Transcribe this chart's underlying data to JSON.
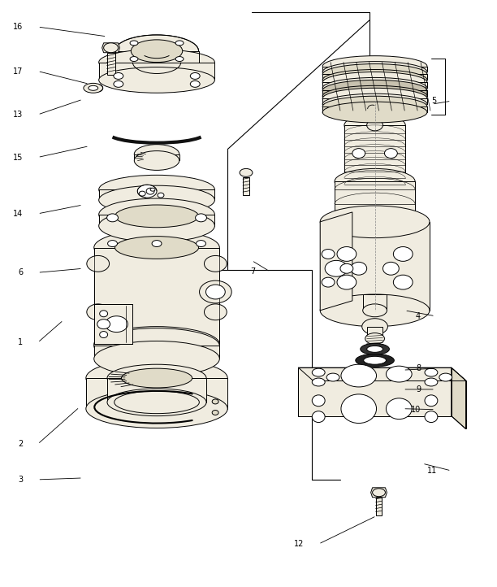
{
  "background_color": "#ffffff",
  "lc": "#000000",
  "lw": 0.7,
  "fill_light": "#f0ece0",
  "fill_mid": "#e0dbc8",
  "fill_dark": "#c8c2b0",
  "fill_white": "#ffffff",
  "fill_black": "#111111",
  "fig_width": 6.12,
  "fig_height": 7.22,
  "dpi": 100,
  "leaders": {
    "16": [
      0.042,
      0.96,
      0.13,
      0.95
    ],
    "17": [
      0.042,
      0.9,
      0.09,
      0.893
    ],
    "13": [
      0.042,
      0.8,
      0.095,
      0.82
    ],
    "15": [
      0.042,
      0.73,
      0.11,
      0.74
    ],
    "14": [
      0.042,
      0.635,
      0.095,
      0.644
    ],
    "6": [
      0.042,
      0.535,
      0.095,
      0.525
    ],
    "1": [
      0.042,
      0.43,
      0.073,
      0.435
    ],
    "2": [
      0.042,
      0.24,
      0.082,
      0.248
    ],
    "3": [
      0.042,
      0.178,
      0.097,
      0.178
    ],
    "7": [
      0.43,
      0.54,
      0.37,
      0.535
    ],
    "4": [
      0.84,
      0.46,
      0.8,
      0.45
    ],
    "5": [
      0.87,
      0.83,
      0.82,
      0.82
    ],
    "8": [
      0.84,
      0.37,
      0.77,
      0.367
    ],
    "9": [
      0.84,
      0.335,
      0.77,
      0.332
    ],
    "10": [
      0.84,
      0.3,
      0.77,
      0.298
    ],
    "11": [
      0.87,
      0.195,
      0.83,
      0.2
    ],
    "12": [
      0.48,
      0.068,
      0.555,
      0.088
    ]
  }
}
